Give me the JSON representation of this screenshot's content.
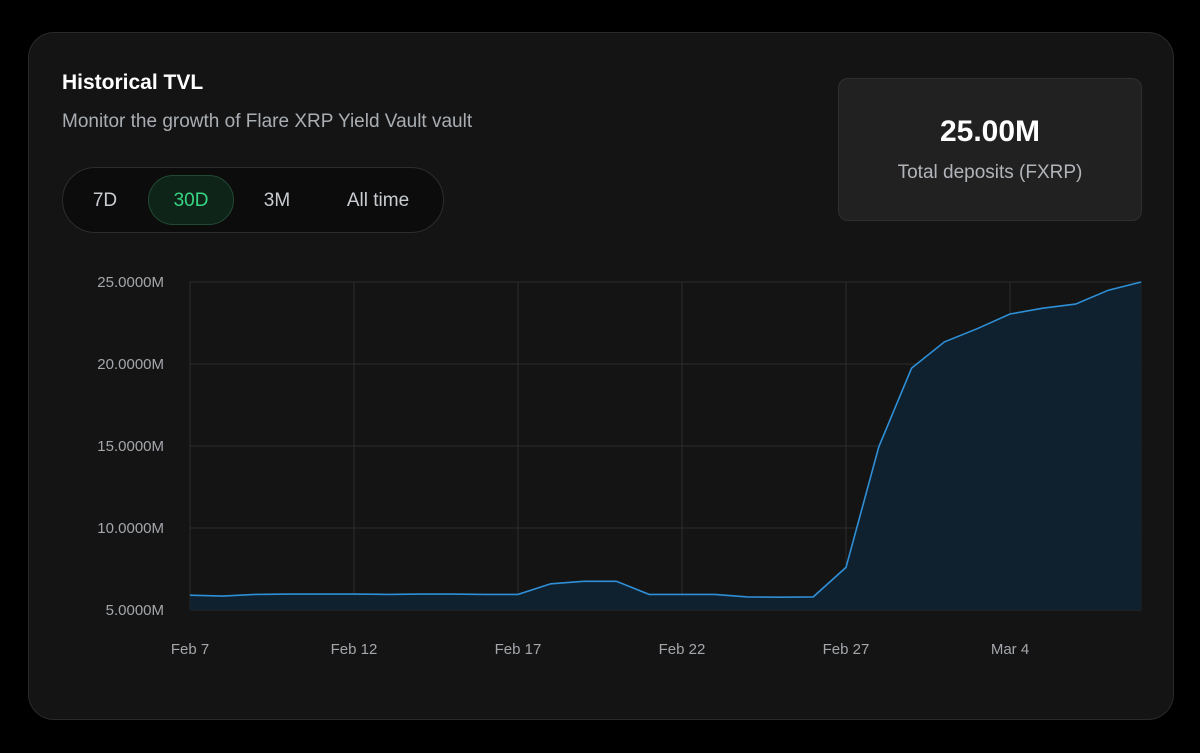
{
  "header": {
    "title": "Historical TVL",
    "subtitle": "Monitor the growth of Flare XRP Yield Vault vault"
  },
  "range_tabs": {
    "items": [
      {
        "label": "7D",
        "active": false
      },
      {
        "label": "30D",
        "active": true
      },
      {
        "label": "3M",
        "active": false
      },
      {
        "label": "All time",
        "active": false
      }
    ]
  },
  "stat": {
    "value": "25.00M",
    "label": "Total deposits (FXRP)"
  },
  "colors": {
    "line": "#2f8fd6",
    "area": "#0f2230",
    "active_tab_text": "#37d482"
  },
  "chart_data": {
    "type": "area",
    "title": "",
    "xlabel": "",
    "ylabel": "",
    "ylim": [
      5,
      25
    ],
    "y_ticks": [
      "5.0000M",
      "10.0000M",
      "15.0000M",
      "20.0000M",
      "25.0000M"
    ],
    "x_ticks": [
      "Feb 7",
      "Feb 12",
      "Feb 17",
      "Feb 22",
      "Feb 27",
      "Mar 4"
    ],
    "grid": true,
    "series": [
      {
        "x": [
          "Feb 7",
          "Feb 8",
          "Feb 9",
          "Feb 10",
          "Feb 11",
          "Feb 12",
          "Feb 13",
          "Feb 14",
          "Feb 15",
          "Feb 16",
          "Feb 17",
          "Feb 18",
          "Feb 19",
          "Feb 20",
          "Feb 21",
          "Feb 22",
          "Feb 23",
          "Feb 24",
          "Feb 25",
          "Feb 26",
          "Feb 27",
          "Feb 28",
          "Mar 1",
          "Mar 2",
          "Mar 3",
          "Mar 4",
          "Mar 5",
          "Mar 6",
          "Mar 7",
          "Mar 8"
        ],
        "values": [
          5.9,
          5.85,
          5.95,
          5.97,
          5.97,
          5.97,
          5.95,
          5.97,
          5.97,
          5.95,
          5.95,
          6.6,
          6.75,
          6.75,
          5.95,
          5.95,
          5.95,
          5.8,
          5.78,
          5.8,
          7.6,
          14.95,
          19.75,
          21.35,
          22.15,
          23.05,
          23.4,
          23.65,
          24.5,
          25.0
        ]
      }
    ]
  }
}
